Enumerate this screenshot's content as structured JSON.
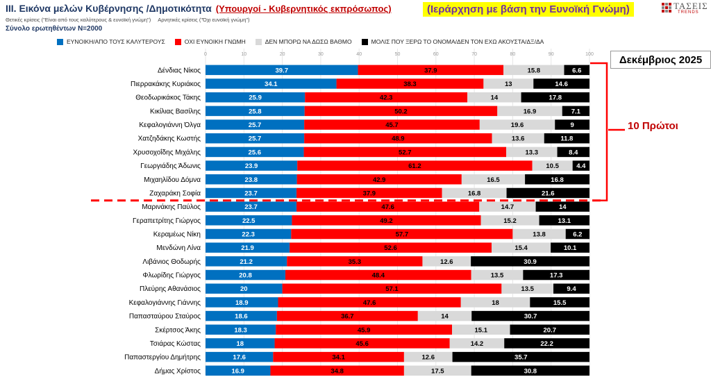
{
  "header": {
    "title": "ΙΙΙ. Εικόνα μελών Κυβέρνησης /Δημοτικότητα",
    "title_highlight": "(Υπουργοί - Κυβερνητικός εκπρόσωπος)",
    "ranking_note": "(Ιεράρχηση με βάση την Ευνοϊκή Γνώμη)",
    "positive_note": "Θετικές κρίσεις (\"Είναι από τους καλύτερους & ευνοϊκή γνώμη\")",
    "negative_note": "Αρνητικές κρίσεις (\"Όχι ευνοϊκή γνώμη\")",
    "sample": "Σύνολο ερωτηθέντων N=2000",
    "logo_text": "ΤΑΣΕΙΣ",
    "logo_sub": "TRENDS"
  },
  "side_labels": {
    "month": "Δεκέμβριος 2025",
    "top_group": "10 Πρώτοι"
  },
  "colors": {
    "favorable": "#0070c0",
    "unfavorable": "#ff0000",
    "cannot_rate": "#d9d9d9",
    "barely_know": "#000000",
    "divider": "#ff0000"
  },
  "chart_data": {
    "type": "bar",
    "orientation": "horizontal",
    "stacked": true,
    "xlim": [
      0,
      100
    ],
    "x_ticks": [
      "0",
      "10",
      "20",
      "30",
      "40",
      "50",
      "60",
      "70",
      "80",
      "90",
      "100"
    ],
    "grid": true,
    "legend_position": "top",
    "categories": [
      "Δένδιας Νίκος",
      "Πιερρακάκης Κυριάκος",
      "Θεοδωρικάκος Τάκης",
      "Κικίλιας Βασίλης",
      "Κεφαλογιάννη Όλγα",
      "Χατζηδάκης Κωστής",
      "Χρυσοχοΐδης Μιχάλης",
      "Γεωργιάδης Άδωνις",
      "Μιχαηλίδου Δόμνα",
      "Ζαχαράκη Σοφία",
      "Μαρινάκης Παύλος",
      "Γεραπετρίτης Γιώργος",
      "Κεραμέως Νίκη",
      "Μενδώνη Λίνα",
      "Λιβάνιος Θοδωρής",
      "Φλωρίδης Γιώργος",
      "Πλεύρης Αθανάσιος",
      "Κεφαλογιάννης Γιάννης",
      "Παπασταύρου Σταύρος",
      "Σκέρτσος Άκης",
      "Τσιάρας Κώστας",
      "Παπαστεργίου Δημήτρης",
      "Δήμας Χρίστος"
    ],
    "series": [
      {
        "name": "ΕΥΝΟΙΚΗ/ΑΠΟ ΤΟΥΣ ΚΑΛΥΤΕΡΟΥΣ",
        "values": [
          39.7,
          34.1,
          25.9,
          25.8,
          25.7,
          25.7,
          25.6,
          23.9,
          23.8,
          23.7,
          23.7,
          22.5,
          22.3,
          21.9,
          21.2,
          20.8,
          20,
          18.9,
          18.6,
          18.3,
          18,
          17.6,
          16.9
        ]
      },
      {
        "name": "ΟΧΙ ΕΥΝΟΙΚΗ ΓΝΩΜΗ",
        "values": [
          37.9,
          38.3,
          42.3,
          50.2,
          45.7,
          48.9,
          52.7,
          61.2,
          42.9,
          37.9,
          47.6,
          49.2,
          57.7,
          52.6,
          35.3,
          48.4,
          57.1,
          47.6,
          36.7,
          45.9,
          45.6,
          34.1,
          34.8
        ]
      },
      {
        "name": "ΔΕΝ ΜΠΟΡΩ ΝΑ ΔΩΣΩ ΒΑΘΜΟ",
        "values": [
          15.8,
          13,
          14,
          16.9,
          19.6,
          13.6,
          13.3,
          10.5,
          16.5,
          16.8,
          14.7,
          15.2,
          13.8,
          15.4,
          12.6,
          13.5,
          13.5,
          18,
          14,
          15.1,
          14.2,
          12.6,
          17.5
        ]
      },
      {
        "name": "ΜΟΛΙΣ ΠΟΥ ΞΕΡΩ ΤΟ ΟΝΟΜΑ/ΔΕΝ ΤΟΝ ΕΧΩ ΑΚΟΥΣΤΑ/ΔΞ/ΔΑ",
        "values": [
          6.6,
          14.6,
          17.8,
          7.1,
          9,
          11.8,
          8.4,
          4.4,
          16.8,
          21.6,
          14,
          13.1,
          6.2,
          10.1,
          30.9,
          17.3,
          9.4,
          15.5,
          30.7,
          20.7,
          22.2,
          35.7,
          30.8
        ]
      }
    ],
    "top_group_size": 10
  }
}
